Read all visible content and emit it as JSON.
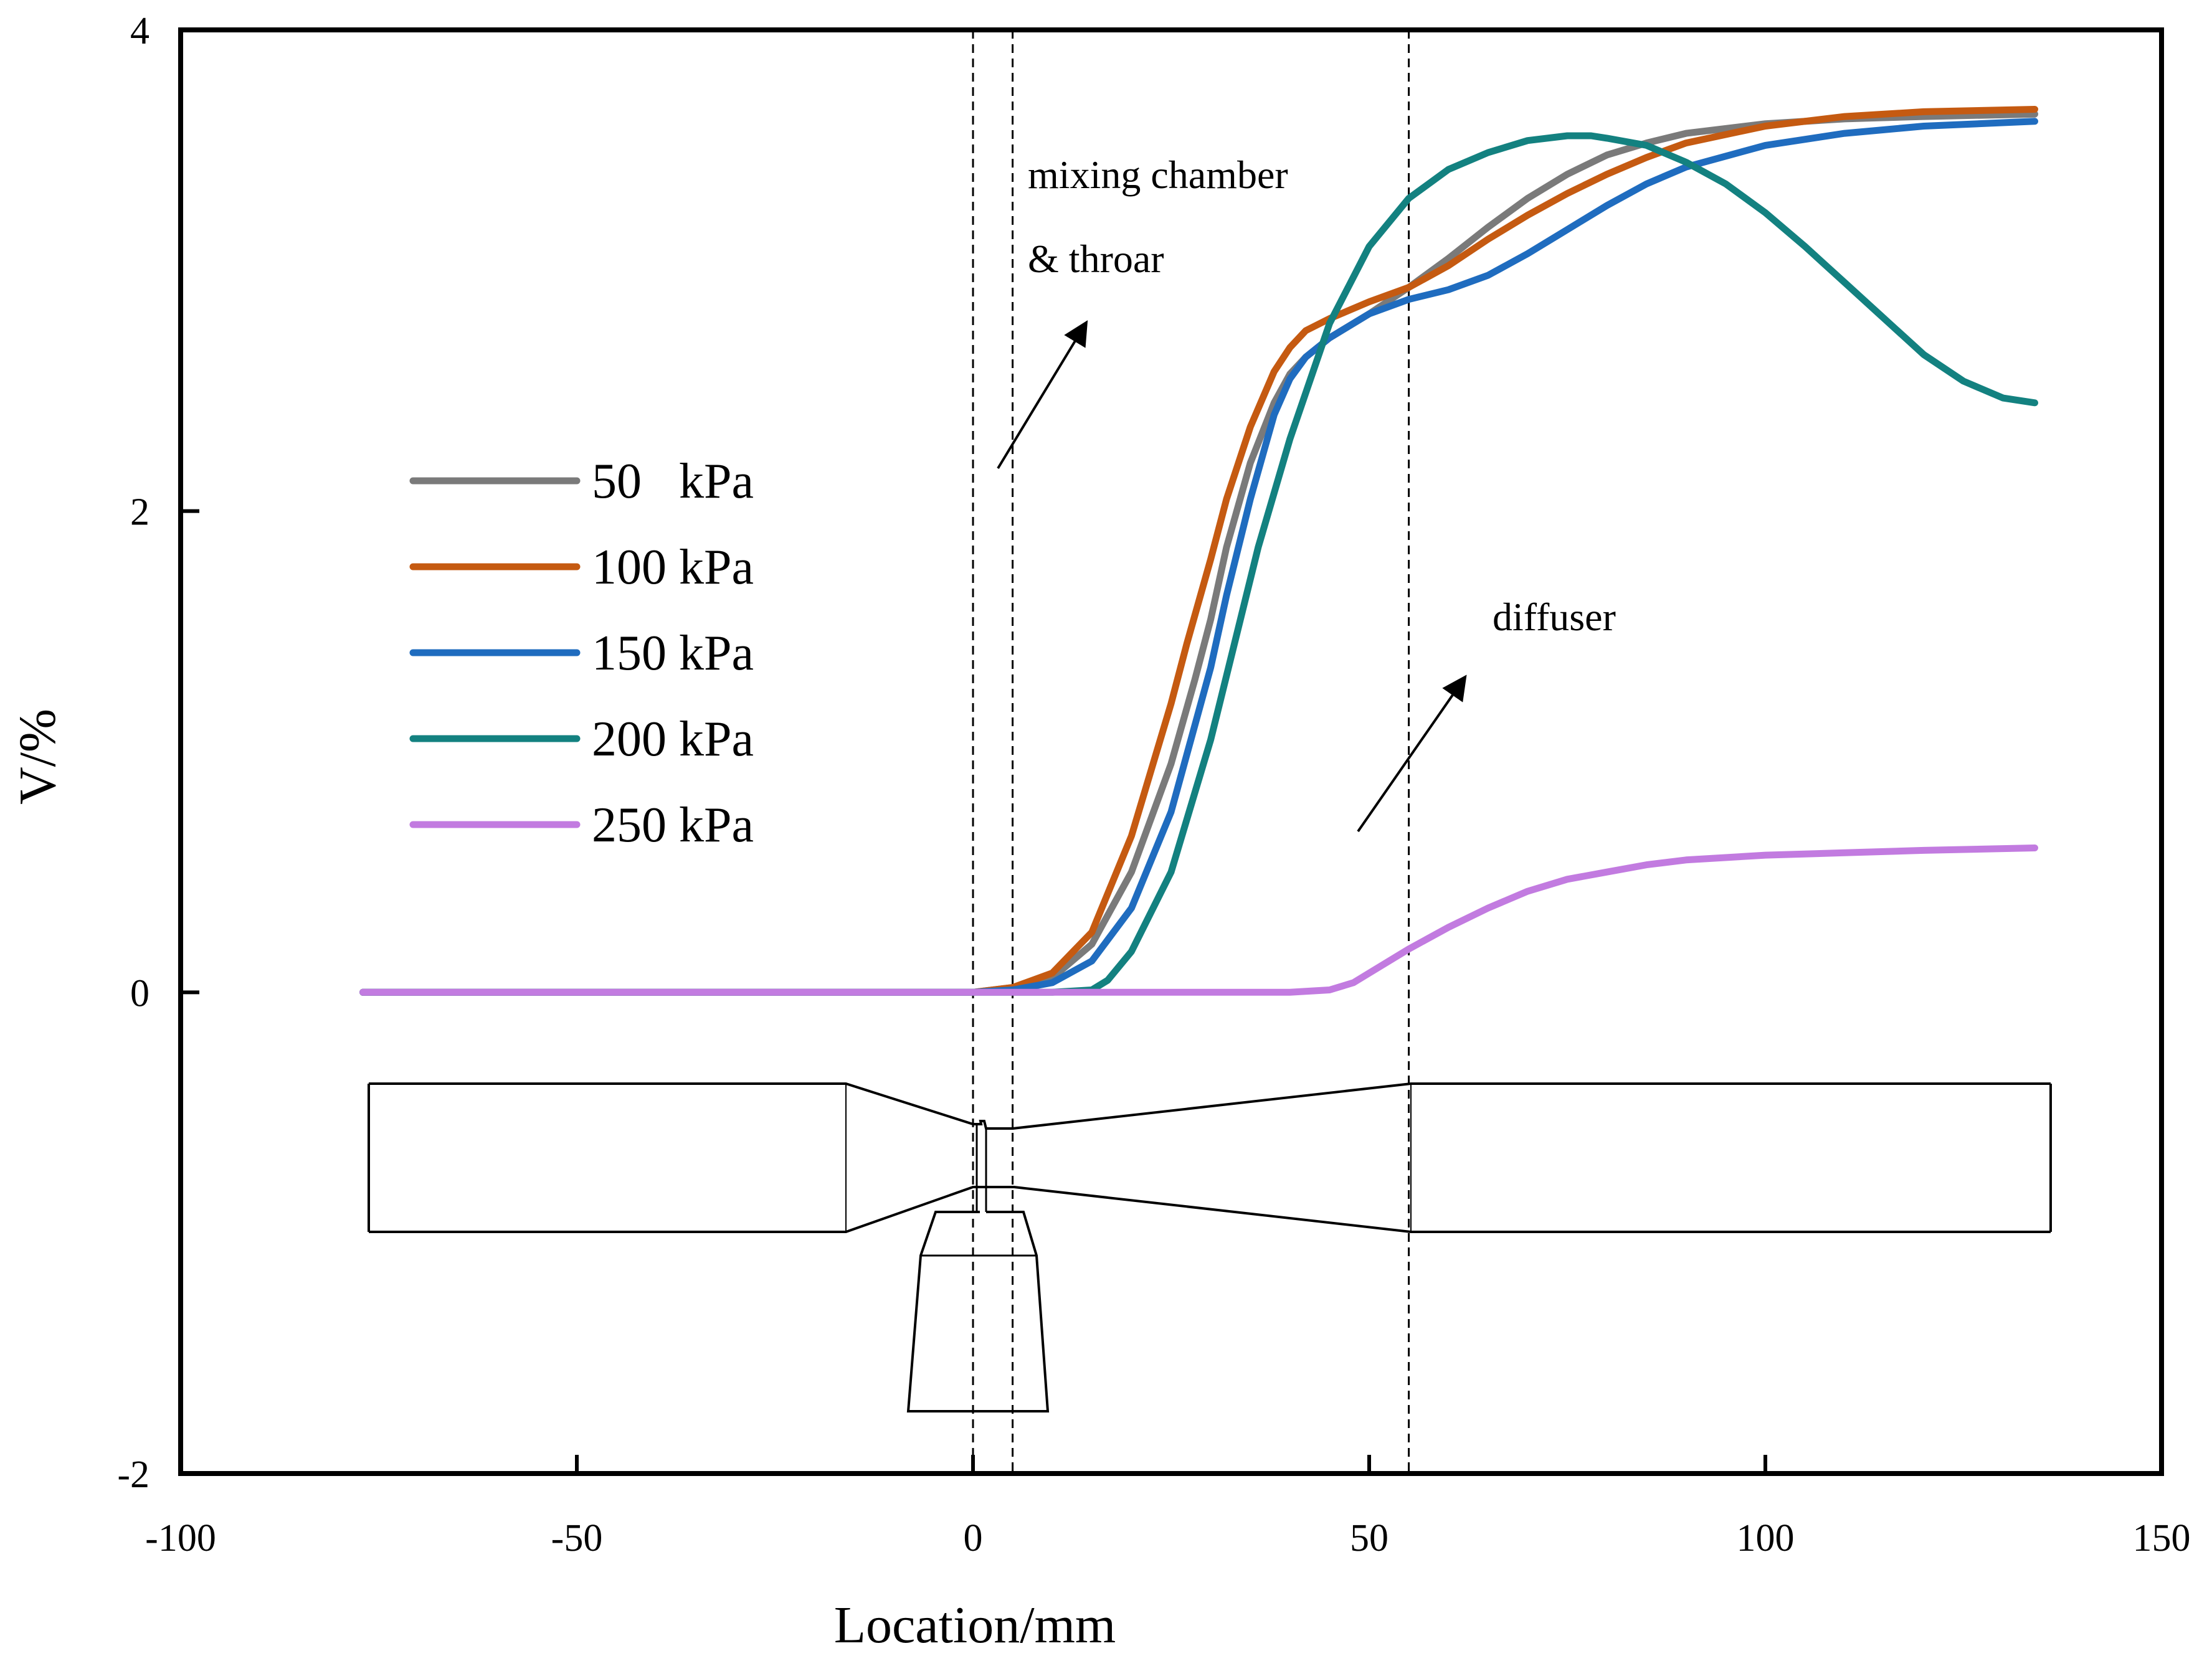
{
  "chart_data": {
    "type": "line",
    "title": "",
    "xlabel": "Location/mm",
    "ylabel": "V/%",
    "xlim": [
      -100,
      150
    ],
    "ylim": [
      -2,
      4
    ],
    "x_ticks": [
      -100,
      -50,
      0,
      50,
      100,
      150
    ],
    "x_tick_labels": [
      "-100",
      "-50",
      "0",
      "50",
      "100",
      "150"
    ],
    "y_ticks": [
      -2,
      0,
      2,
      4
    ],
    "y_tick_labels": [
      "-2",
      "0",
      "2",
      "4"
    ],
    "legend_position": "center-left",
    "series": [
      {
        "name": "50   kPa",
        "color": "#7a7a7a",
        "x": [
          -77,
          0,
          5,
          10,
          15,
          20,
          25,
          28,
          30,
          32,
          35,
          38,
          40,
          42,
          45,
          50,
          55,
          60,
          65,
          70,
          75,
          80,
          85,
          90,
          100,
          110,
          120,
          134
        ],
        "y": [
          0,
          0,
          0.02,
          0.06,
          0.2,
          0.5,
          0.95,
          1.3,
          1.55,
          1.85,
          2.2,
          2.45,
          2.57,
          2.64,
          2.72,
          2.82,
          2.93,
          3.05,
          3.18,
          3.3,
          3.4,
          3.48,
          3.53,
          3.57,
          3.61,
          3.63,
          3.64,
          3.65
        ]
      },
      {
        "name": "100 kPa",
        "color": "#c55a11",
        "x": [
          -77,
          0,
          5,
          10,
          15,
          20,
          25,
          27,
          30,
          32,
          35,
          38,
          40,
          42,
          45,
          50,
          55,
          60,
          65,
          70,
          75,
          80,
          85,
          90,
          100,
          110,
          120,
          134
        ],
        "y": [
          0,
          0,
          0.02,
          0.08,
          0.25,
          0.65,
          1.2,
          1.45,
          1.8,
          2.05,
          2.35,
          2.58,
          2.68,
          2.75,
          2.8,
          2.87,
          2.93,
          3.02,
          3.13,
          3.23,
          3.32,
          3.4,
          3.47,
          3.53,
          3.6,
          3.64,
          3.66,
          3.67
        ]
      },
      {
        "name": "150 kPa",
        "color": "#1f6cbf",
        "x": [
          -77,
          0,
          5,
          10,
          15,
          20,
          25,
          30,
          32,
          35,
          38,
          40,
          42,
          45,
          50,
          55,
          60,
          65,
          70,
          75,
          80,
          85,
          90,
          100,
          110,
          120,
          134
        ],
        "y": [
          0,
          0,
          0.01,
          0.04,
          0.13,
          0.35,
          0.75,
          1.35,
          1.65,
          2.05,
          2.4,
          2.55,
          2.64,
          2.72,
          2.82,
          2.88,
          2.92,
          2.98,
          3.07,
          3.17,
          3.27,
          3.36,
          3.43,
          3.52,
          3.57,
          3.6,
          3.62
        ]
      },
      {
        "name": "200 kPa",
        "color": "#138180",
        "x": [
          -77,
          0,
          5,
          10,
          15,
          17,
          20,
          25,
          30,
          33,
          36,
          40,
          45,
          50,
          55,
          60,
          65,
          70,
          75,
          78,
          80,
          85,
          90,
          95,
          100,
          105,
          110,
          115,
          120,
          125,
          130,
          134
        ],
        "y": [
          0,
          0,
          0,
          0,
          0.01,
          0.05,
          0.17,
          0.5,
          1.05,
          1.45,
          1.85,
          2.3,
          2.78,
          3.1,
          3.3,
          3.42,
          3.49,
          3.54,
          3.56,
          3.56,
          3.55,
          3.52,
          3.45,
          3.36,
          3.24,
          3.1,
          2.95,
          2.8,
          2.65,
          2.54,
          2.47,
          2.45
        ]
      },
      {
        "name": "250 kPa",
        "color": "#c27be0",
        "x": [
          -77,
          0,
          40,
          45,
          48,
          50,
          55,
          60,
          65,
          70,
          75,
          80,
          85,
          90,
          100,
          110,
          120,
          134
        ],
        "y": [
          0,
          0,
          0,
          0.01,
          0.04,
          0.08,
          0.18,
          0.27,
          0.35,
          0.42,
          0.47,
          0.5,
          0.53,
          0.55,
          0.57,
          0.58,
          0.59,
          0.6
        ]
      }
    ],
    "vertical_reference_lines_x": [
      0,
      5,
      55
    ],
    "annotations": [
      {
        "lines": [
          "mixing chamber",
          "& throar"
        ],
        "x": 7,
        "y": 3.35
      },
      {
        "lines": [
          "diffuser"
        ],
        "x": 65,
        "y": 1.5
      }
    ]
  }
}
